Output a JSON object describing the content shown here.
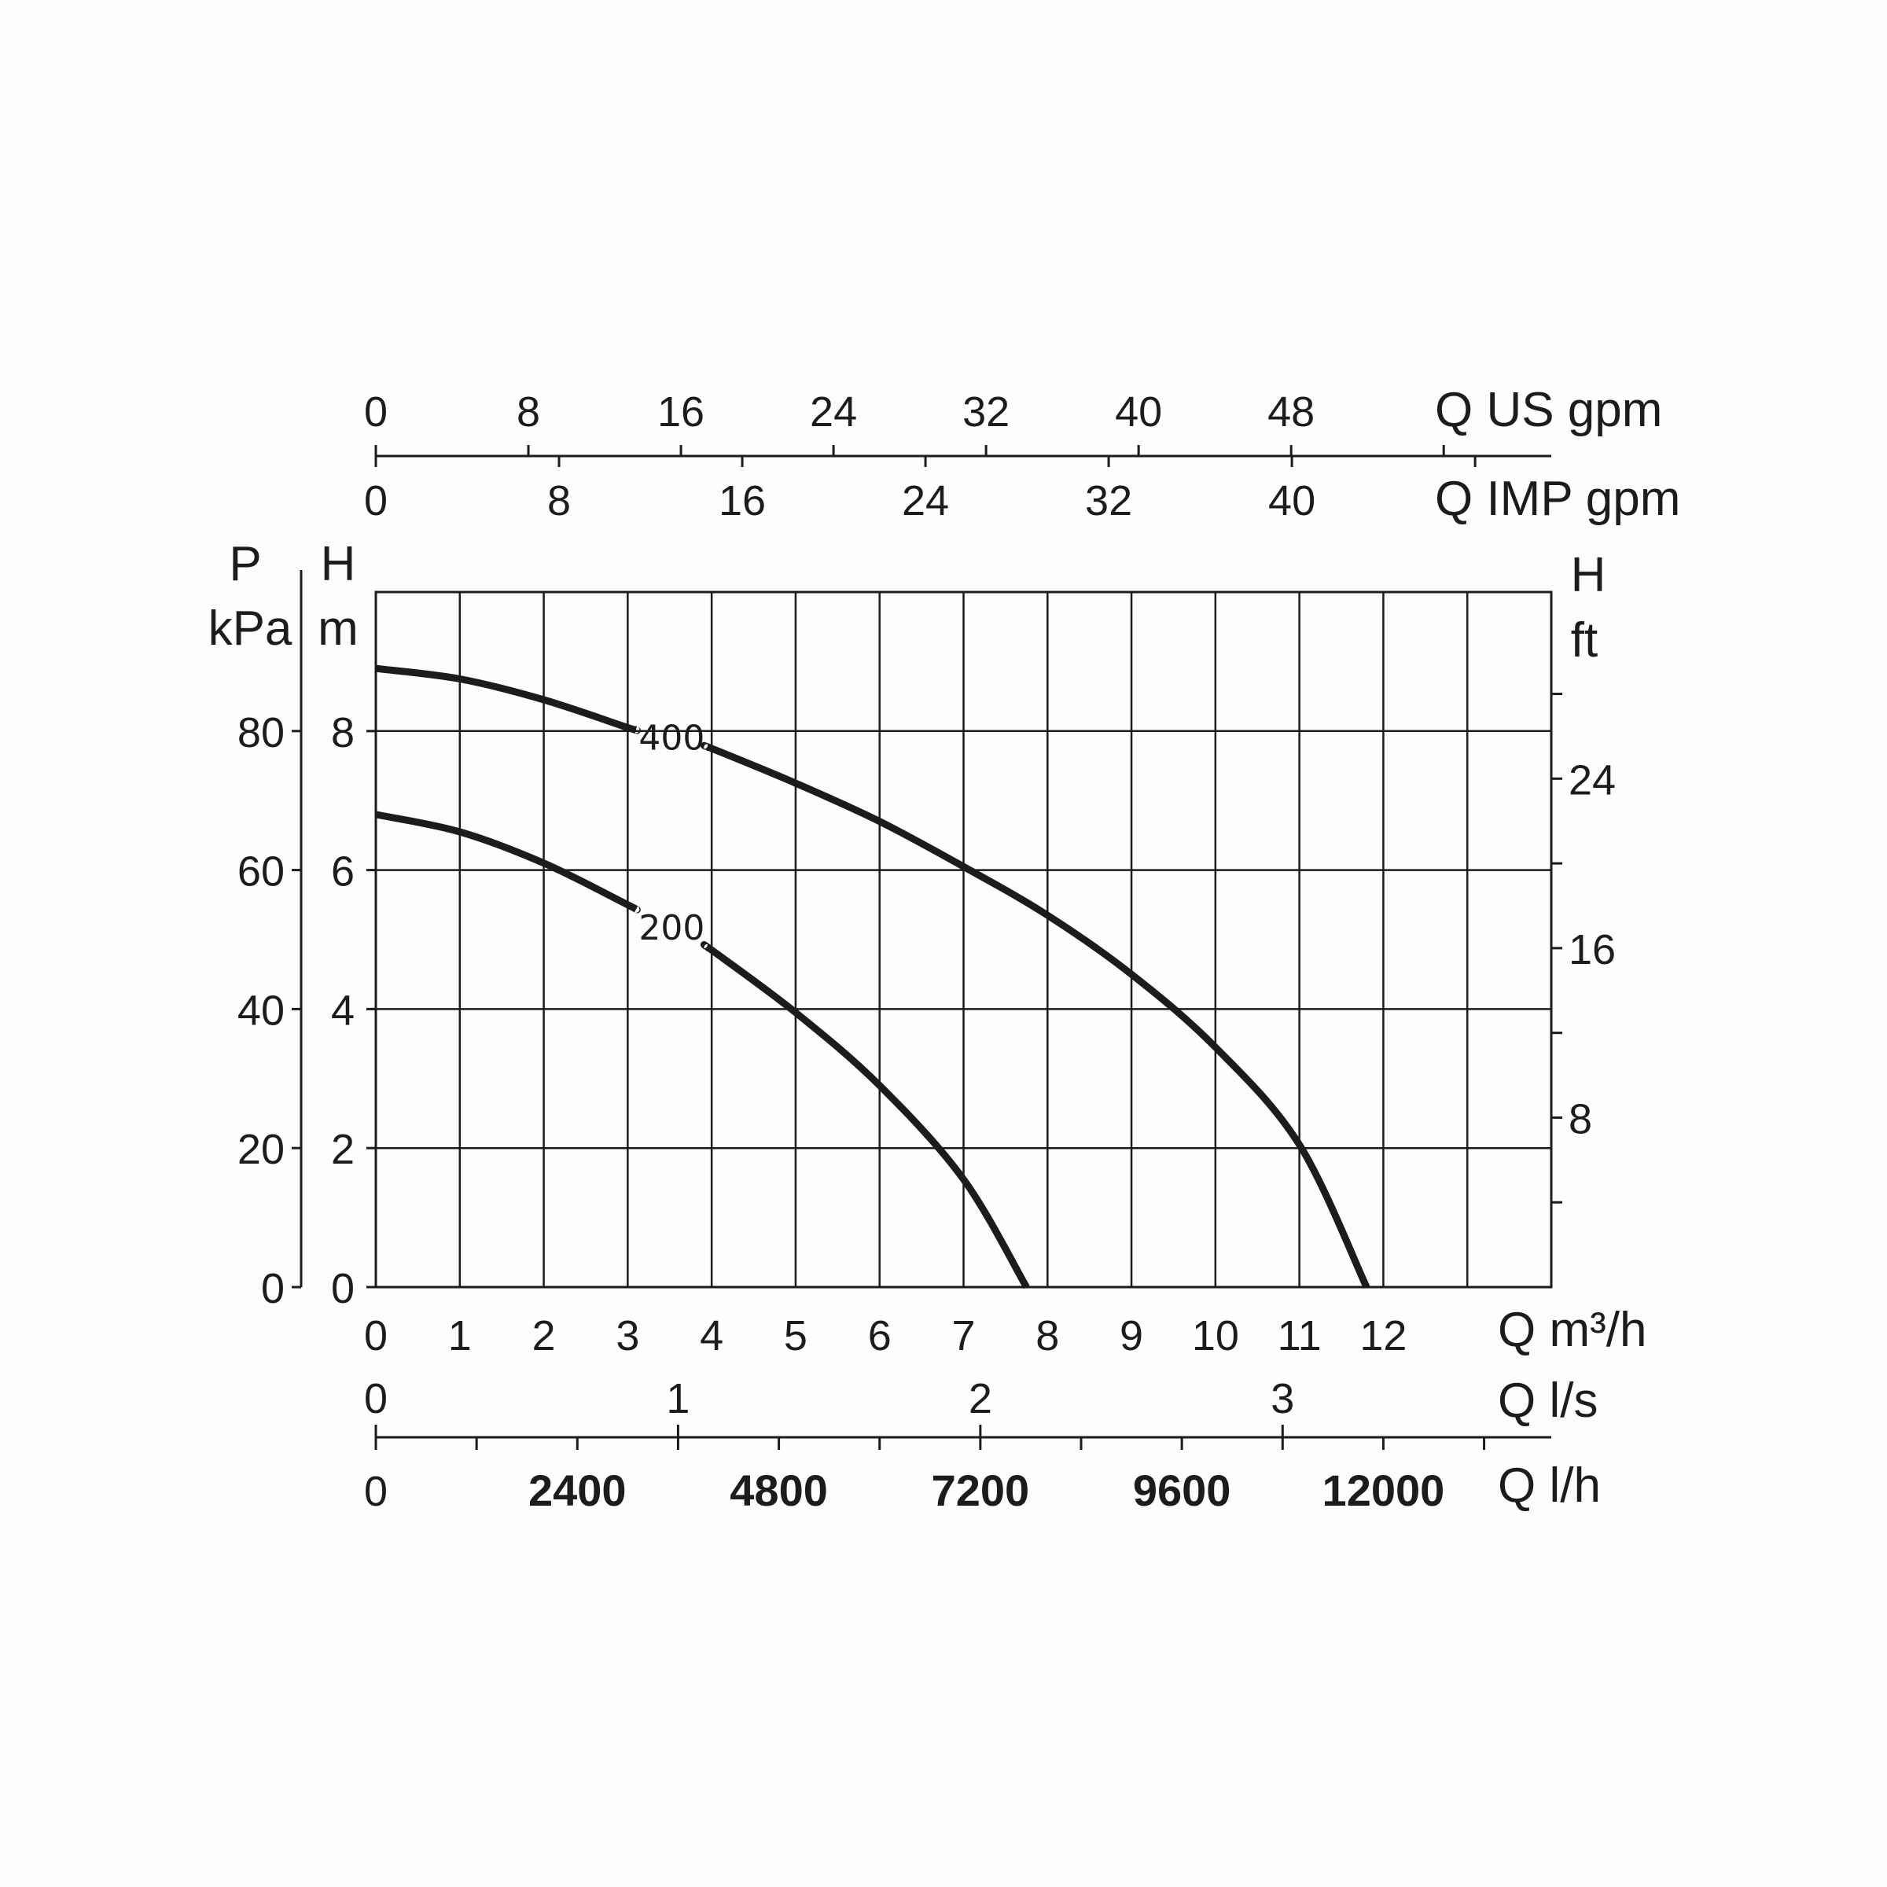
{
  "chart_data": {
    "type": "line",
    "x_axis": {
      "label": "Q m³/h",
      "ticks": [
        "0",
        "1",
        "2",
        "3",
        "4",
        "5",
        "6",
        "7",
        "8",
        "9",
        "10",
        "11",
        "12"
      ],
      "range": [
        0,
        14
      ]
    },
    "y_axis_left_H": {
      "label_top": "H",
      "label_bottom": "m",
      "ticks": [
        "0",
        "2",
        "4",
        "6",
        "8"
      ],
      "range": [
        0,
        10
      ]
    },
    "y_axis_left_P": {
      "label_top": "P",
      "label_bottom": "kPa",
      "ticks": [
        "0",
        "20",
        "40",
        "60",
        "80"
      ],
      "range": [
        0,
        100
      ]
    },
    "y_axis_right_H": {
      "label_top": "H",
      "label_bottom": "ft",
      "ticks": [
        "8",
        "16",
        "24"
      ]
    },
    "top_axis_us": {
      "label": "Q US gpm",
      "ticks": [
        "0",
        "8",
        "16",
        "24",
        "32",
        "40",
        "48"
      ]
    },
    "top_axis_imp": {
      "label": "Q IMP gpm",
      "ticks": [
        "0",
        "8",
        "16",
        "24",
        "32",
        "40"
      ]
    },
    "bottom_axis_ls": {
      "label": "Q l/s",
      "ticks": [
        "0",
        "1",
        "2",
        "3"
      ]
    },
    "bottom_axis_lh": {
      "label": "Q l/h",
      "ticks": [
        "0",
        "2400",
        "4800",
        "7200",
        "9600",
        "12000"
      ]
    },
    "grid": true,
    "series": [
      {
        "name": "400",
        "x": [
          0,
          1,
          2,
          3,
          4,
          5,
          6,
          7,
          8,
          9,
          10,
          11,
          11.8
        ],
        "y": [
          8.9,
          8.75,
          8.45,
          8.05,
          7.75,
          7.25,
          6.7,
          6.05,
          5.35,
          4.5,
          3.45,
          2.05,
          0
        ]
      },
      {
        "name": "200",
        "x": [
          0,
          1,
          2,
          3,
          4,
          5,
          6,
          7,
          7.75
        ],
        "y": [
          6.8,
          6.55,
          6.1,
          5.5,
          4.85,
          3.95,
          2.9,
          1.55,
          0
        ]
      }
    ]
  }
}
